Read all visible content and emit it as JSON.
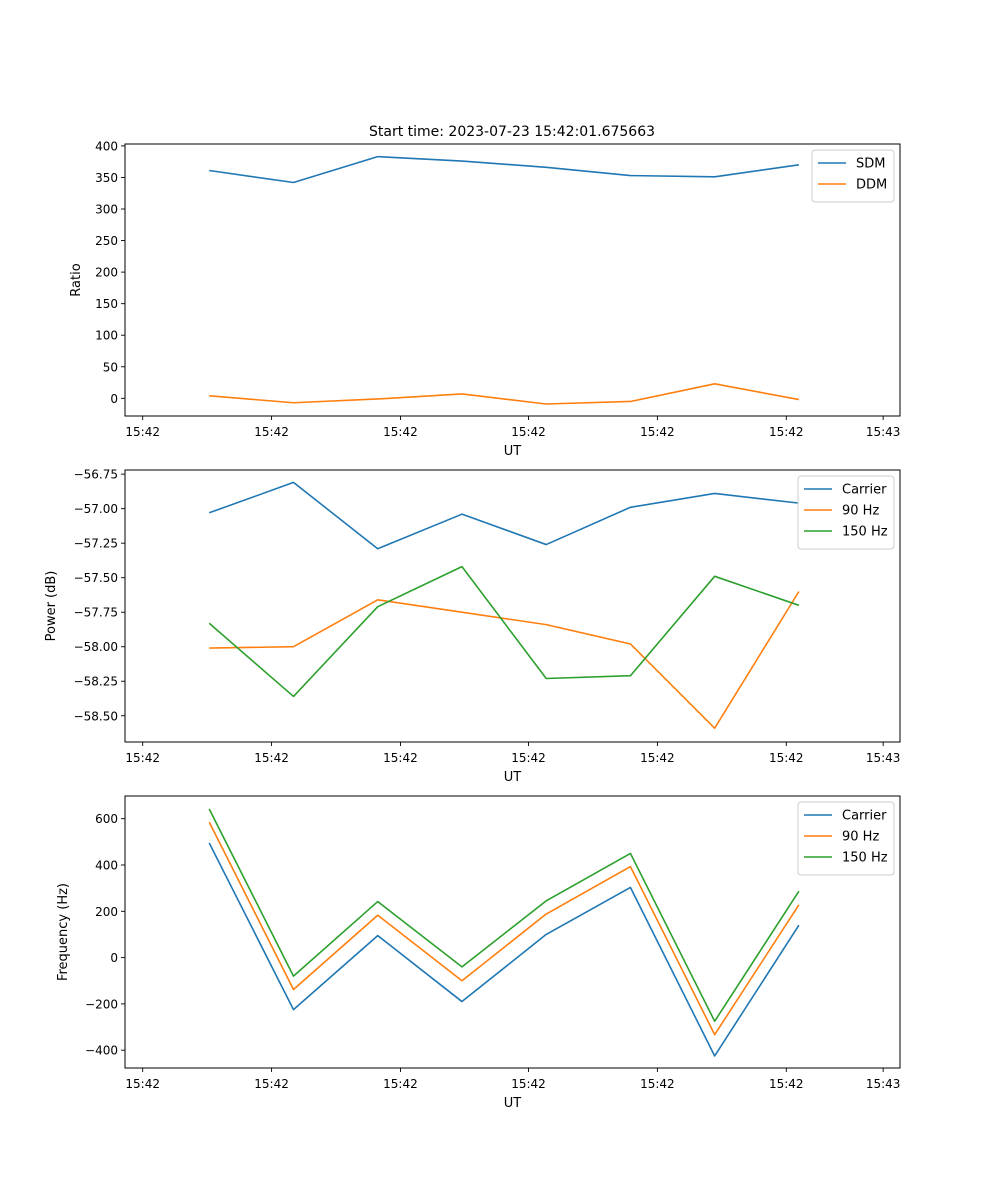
{
  "figure_title": "Start time: 2023-07-23 15:42:01.675663",
  "colors": {
    "blue": "#1f77b4",
    "orange": "#ff7f0e",
    "green": "#2ca02c"
  },
  "chart_data": [
    {
      "type": "line",
      "title": "Start time: 2023-07-23 15:42:01.675663",
      "xlabel": "UT",
      "ylabel": "Ratio",
      "x": [
        1,
        2,
        3,
        4,
        5,
        6,
        7,
        8
      ],
      "xlim": [
        0,
        9.2
      ],
      "xticks": [
        0.21,
        1.74,
        3.27,
        4.79,
        6.32,
        7.85,
        9.0
      ],
      "xticklabels": [
        "15:42",
        "15:42",
        "15:42",
        "15:42",
        "15:42",
        "15:42",
        "15:43"
      ],
      "ylim": [
        -28,
        403
      ],
      "yticks": [
        0,
        50,
        100,
        150,
        200,
        250,
        300,
        350,
        400
      ],
      "yticklabels": [
        "0",
        "50",
        "100",
        "150",
        "200",
        "250",
        "300",
        "350",
        "400"
      ],
      "legend_position": "top-right",
      "series": [
        {
          "name": "SDM",
          "color": "#1f77b4",
          "values": [
            361,
            342,
            383,
            376,
            366,
            353,
            351,
            370
          ]
        },
        {
          "name": "DDM",
          "color": "#ff7f0e",
          "values": [
            4,
            -7,
            -1,
            7,
            -9,
            -5,
            23,
            -2
          ]
        }
      ]
    },
    {
      "type": "line",
      "title": "",
      "xlabel": "UT",
      "ylabel": "Power (dB)",
      "x": [
        1,
        2,
        3,
        4,
        5,
        6,
        7,
        8
      ],
      "xlim": [
        0,
        9.2
      ],
      "xticks": [
        0.21,
        1.74,
        3.27,
        4.79,
        6.32,
        7.85,
        9.0
      ],
      "xticklabels": [
        "15:42",
        "15:42",
        "15:42",
        "15:42",
        "15:42",
        "15:42",
        "15:43"
      ],
      "ylim": [
        -58.69,
        -56.72
      ],
      "yticks": [
        -58.5,
        -58.25,
        -58.0,
        -57.75,
        -57.5,
        -57.25,
        -57.0,
        -56.75
      ],
      "yticklabels": [
        "−58.50",
        "−58.25",
        "−58.00",
        "−57.75",
        "−57.50",
        "−57.25",
        "−57.00",
        "−56.75"
      ],
      "legend_position": "top-right",
      "series": [
        {
          "name": "Carrier",
          "color": "#1f77b4",
          "values": [
            -57.03,
            -56.81,
            -57.29,
            -57.04,
            -57.26,
            -56.99,
            -56.89,
            -56.96
          ]
        },
        {
          "name": "90 Hz",
          "color": "#ff7f0e",
          "values": [
            -58.01,
            -58.0,
            -57.66,
            -57.75,
            -57.84,
            -57.98,
            -58.59,
            -57.6
          ]
        },
        {
          "name": "150 Hz",
          "color": "#2ca02c",
          "values": [
            -57.83,
            -58.36,
            -57.71,
            -57.42,
            -58.23,
            -58.21,
            -57.49,
            -57.7
          ]
        }
      ]
    },
    {
      "type": "line",
      "title": "",
      "xlabel": "UT",
      "ylabel": "Frequency (Hz)",
      "x": [
        1,
        2,
        3,
        4,
        5,
        6,
        7,
        8
      ],
      "xlim": [
        0,
        9.2
      ],
      "xticks": [
        0.21,
        1.74,
        3.27,
        4.79,
        6.32,
        7.85,
        9.0
      ],
      "xticklabels": [
        "15:42",
        "15:42",
        "15:42",
        "15:42",
        "15:42",
        "15:42",
        "15:43"
      ],
      "ylim": [
        -477,
        698
      ],
      "yticks": [
        -400,
        -200,
        0,
        200,
        400,
        600
      ],
      "yticklabels": [
        "−400",
        "−200",
        "0",
        "200",
        "400",
        "600"
      ],
      "legend_position": "top-right",
      "series": [
        {
          "name": "Carrier",
          "color": "#1f77b4",
          "values": [
            495,
            -225,
            95,
            -190,
            100,
            303,
            -425,
            140
          ]
        },
        {
          "name": "90 Hz",
          "color": "#ff7f0e",
          "values": [
            585,
            -138,
            183,
            -100,
            188,
            393,
            -333,
            228
          ]
        },
        {
          "name": "150 Hz",
          "color": "#2ca02c",
          "values": [
            642,
            -80,
            242,
            -40,
            245,
            450,
            -275,
            287
          ]
        }
      ]
    }
  ]
}
